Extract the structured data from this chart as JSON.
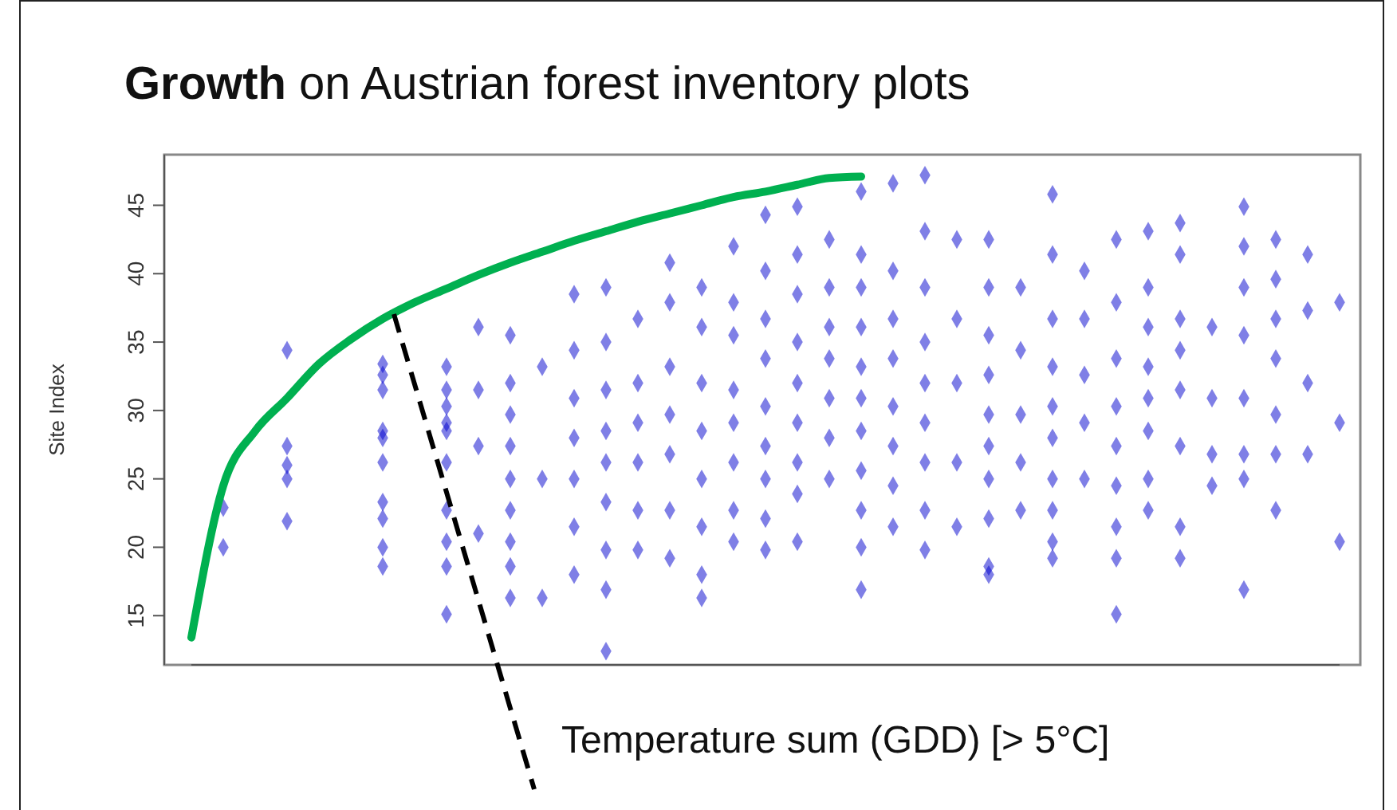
{
  "chart_data": {
    "type": "scatter",
    "title": "Growth on Austrian forest inventory plots",
    "xlabel": "Temperature sum (GDD) [> 5°C]",
    "ylabel": "Site Index",
    "categories": [
      null,
      null,
      null,
      null,
      null,
      null,
      null,
      null,
      null,
      null,
      null,
      null,
      null,
      null,
      null,
      null,
      null,
      null,
      null,
      null,
      null,
      null,
      null,
      null,
      null,
      null,
      null,
      null,
      null,
      null,
      null,
      null,
      null,
      null,
      null,
      null,
      null
    ],
    "ylim": [
      11.4,
      48.7
    ],
    "yticks": [
      15,
      20,
      25,
      30,
      35,
      40,
      45
    ],
    "tick_labels": "y",
    "marker": "diamond",
    "grid": false,
    "series": [
      {
        "color": "#0000cd",
        "values": [
          null,
          22.9,
          null,
          34.4,
          null,
          null,
          null,
          null,
          33.2,
          36.1,
          35.5,
          33.2,
          38.5,
          39.0,
          36.7,
          40.8,
          39.0,
          42.0,
          44.3,
          44.9,
          42.5,
          46.0,
          46.6,
          47.2,
          42.5,
          42.5,
          39.0,
          45.8,
          40.2,
          42.5,
          43.1,
          43.7,
          36.1,
          44.9,
          42.5,
          41.4,
          37.9
        ]
      },
      {
        "color": "#0000cd",
        "values": [
          null,
          20.0,
          null,
          27.4,
          null,
          null,
          33.4,
          null,
          31.5,
          31.5,
          32.0,
          25.0,
          34.4,
          35.0,
          32.0,
          37.9,
          36.1,
          37.9,
          40.2,
          41.4,
          39.0,
          41.4,
          40.2,
          43.1,
          36.7,
          39.0,
          34.4,
          41.4,
          36.7,
          37.9,
          39.0,
          41.4,
          30.9,
          42.0,
          39.6,
          37.3,
          29.1
        ]
      },
      {
        "color": "#0000cd",
        "values": [
          null,
          null,
          null,
          26.0,
          null,
          null,
          32.6,
          null,
          30.3,
          27.4,
          29.7,
          16.3,
          30.9,
          31.5,
          29.1,
          33.2,
          32.0,
          35.5,
          36.7,
          38.5,
          36.1,
          39.0,
          36.7,
          39.0,
          32.0,
          35.5,
          29.7,
          36.7,
          32.6,
          33.8,
          36.1,
          36.7,
          26.8,
          39.0,
          36.7,
          32.0,
          20.4
        ]
      },
      {
        "color": "#0000cd",
        "values": [
          null,
          null,
          null,
          25.0,
          null,
          null,
          31.5,
          null,
          29.1,
          21.0,
          27.4,
          null,
          28.0,
          28.5,
          26.2,
          29.7,
          28.5,
          31.5,
          33.8,
          35.0,
          33.8,
          36.1,
          33.8,
          35.0,
          26.2,
          32.6,
          26.2,
          33.2,
          29.1,
          30.3,
          33.2,
          34.4,
          24.5,
          35.5,
          33.8,
          26.8,
          null
        ]
      },
      {
        "color": "#0000cd",
        "values": [
          null,
          null,
          null,
          21.9,
          null,
          null,
          28.5,
          null,
          28.5,
          null,
          25.0,
          null,
          25.0,
          26.2,
          22.7,
          26.8,
          25.0,
          29.1,
          30.3,
          32.0,
          30.9,
          33.2,
          30.3,
          32.0,
          21.5,
          29.7,
          22.7,
          30.3,
          25.0,
          27.4,
          30.9,
          31.5,
          null,
          30.9,
          29.7,
          null,
          null
        ]
      },
      {
        "color": "#0000cd",
        "values": [
          null,
          null,
          null,
          null,
          null,
          null,
          28.0,
          null,
          26.2,
          null,
          22.7,
          null,
          21.5,
          23.3,
          19.8,
          22.7,
          21.5,
          26.2,
          27.4,
          29.1,
          28.0,
          30.9,
          27.4,
          29.1,
          null,
          27.4,
          null,
          28.0,
          null,
          24.5,
          28.5,
          27.4,
          null,
          26.8,
          26.8,
          null,
          null
        ]
      },
      {
        "color": "#0000cd",
        "values": [
          null,
          null,
          null,
          null,
          null,
          null,
          26.2,
          null,
          22.7,
          null,
          20.4,
          null,
          18.0,
          19.8,
          null,
          19.2,
          18.0,
          22.7,
          25.0,
          26.2,
          25.0,
          28.5,
          24.5,
          26.2,
          null,
          25.0,
          null,
          25.0,
          null,
          21.5,
          25.0,
          21.5,
          null,
          25.0,
          22.7,
          null,
          null
        ]
      },
      {
        "color": "#0000cd",
        "values": [
          null,
          null,
          null,
          null,
          null,
          null,
          23.3,
          null,
          20.4,
          null,
          18.6,
          null,
          null,
          16.9,
          null,
          null,
          16.3,
          20.4,
          22.1,
          23.9,
          null,
          25.6,
          21.5,
          22.7,
          null,
          22.1,
          null,
          22.7,
          null,
          19.2,
          22.7,
          19.2,
          null,
          16.9,
          null,
          null,
          null
        ]
      },
      {
        "color": "#0000cd",
        "values": [
          null,
          null,
          null,
          null,
          null,
          null,
          22.1,
          null,
          18.6,
          null,
          16.3,
          null,
          null,
          12.4,
          null,
          null,
          null,
          null,
          19.8,
          20.4,
          null,
          22.7,
          null,
          19.8,
          null,
          18.6,
          null,
          20.4,
          null,
          15.1,
          null,
          null,
          null,
          null,
          null,
          null,
          null
        ]
      },
      {
        "color": "#0000cd",
        "values": [
          null,
          null,
          null,
          null,
          null,
          null,
          20.0,
          null,
          15.1,
          null,
          null,
          null,
          null,
          null,
          null,
          null,
          null,
          null,
          null,
          null,
          null,
          20.0,
          null,
          null,
          null,
          18.0,
          null,
          19.2,
          null,
          null,
          null,
          null,
          null,
          null,
          null,
          null,
          null
        ]
      },
      {
        "color": "#0000cd",
        "values": [
          null,
          null,
          null,
          null,
          null,
          null,
          18.6,
          null,
          null,
          null,
          null,
          null,
          null,
          null,
          null,
          null,
          null,
          null,
          null,
          null,
          null,
          16.9,
          null,
          null,
          null,
          null,
          null,
          null,
          null,
          null,
          null,
          null,
          null,
          null,
          null,
          null,
          null
        ]
      },
      {
        "type": "line",
        "marker": "none",
        "color": "#00b050",
        "values": [
          13.4,
          24.5,
          28.5,
          30.9,
          33.4,
          35.2,
          36.7,
          37.9,
          38.9,
          39.9,
          40.8,
          41.6,
          42.4,
          43.1,
          43.8,
          44.4,
          45.0,
          45.6,
          46.0,
          46.5,
          47.0,
          47.1,
          null,
          null,
          null,
          null,
          null,
          null,
          null,
          null,
          null,
          null,
          null,
          null,
          null,
          null,
          null
        ]
      }
    ]
  }
}
